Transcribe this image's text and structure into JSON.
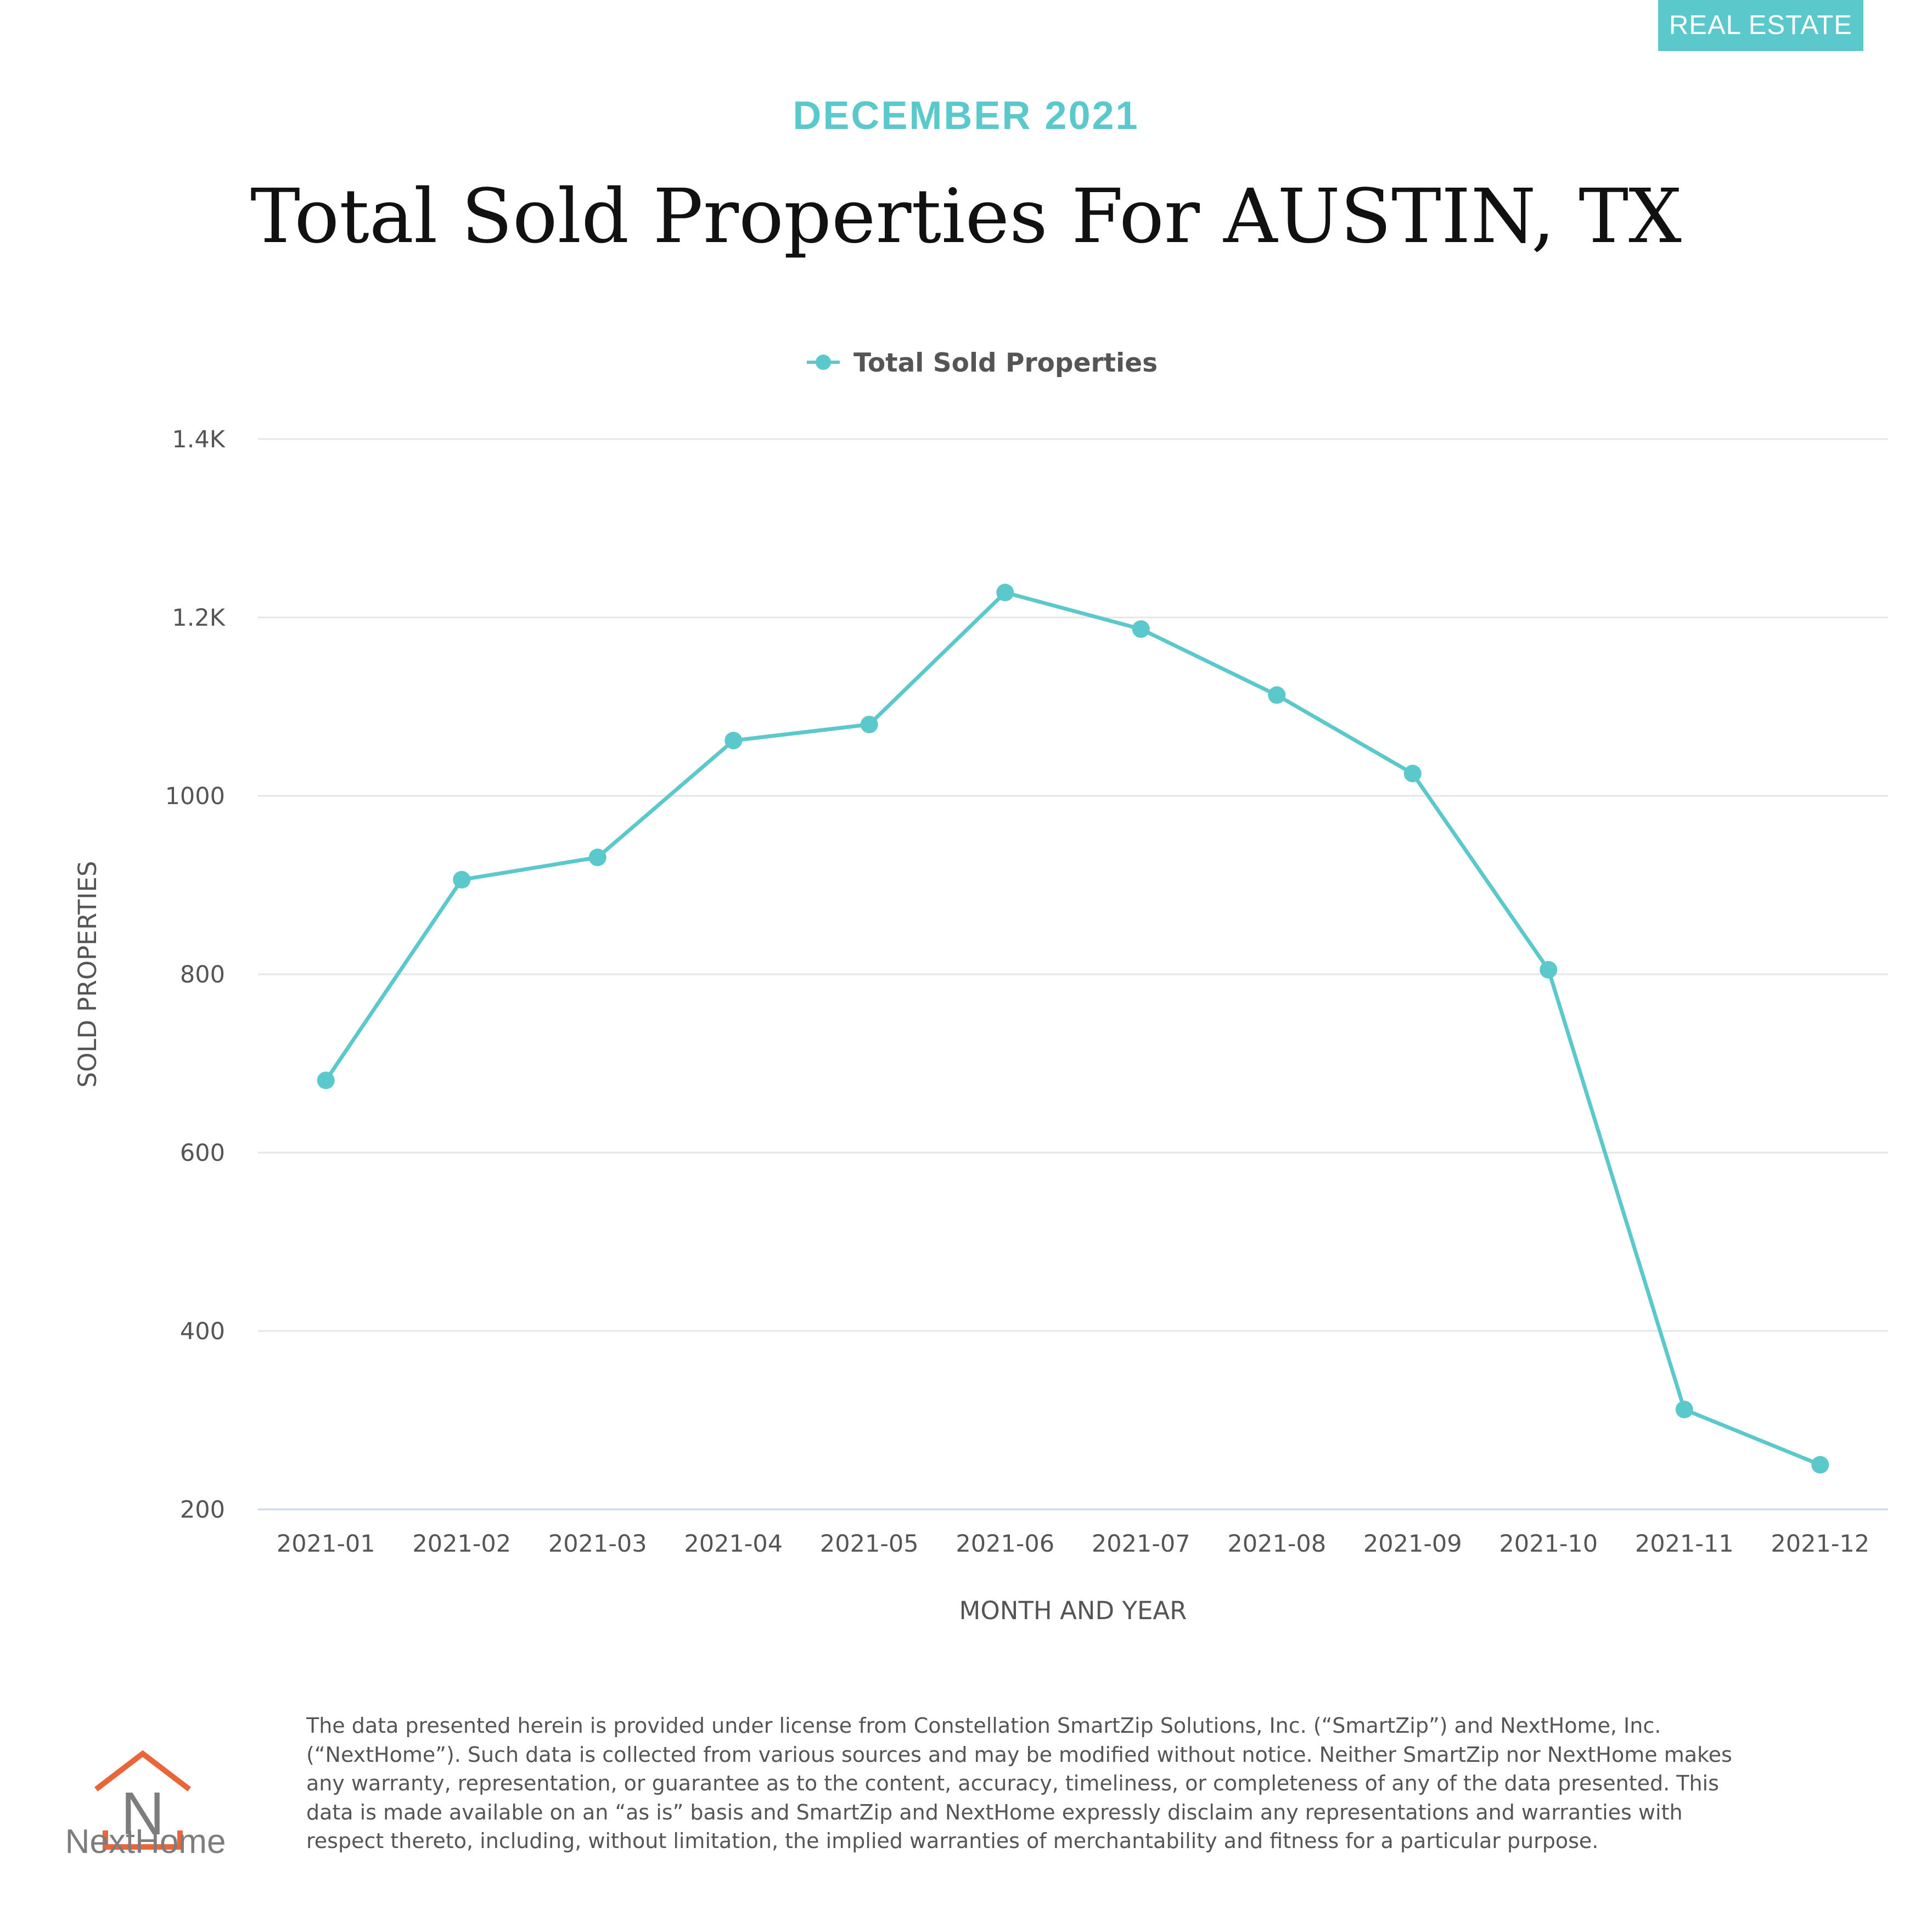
{
  "badge": "REAL ESTATE",
  "header": {
    "subtitle": "DECEMBER 2021",
    "title": "Total Sold Properties For AUSTIN, TX"
  },
  "colors": {
    "accent": "#5bc8cc",
    "grid": "#e6e6e6",
    "axis_line": "#ccd6eb",
    "text": "#555555",
    "logo_orange": "#e8663a",
    "logo_gray": "#7d7d7d"
  },
  "chart_data": {
    "type": "line",
    "categories": [
      "2021-01",
      "2021-02",
      "2021-03",
      "2021-04",
      "2021-05",
      "2021-06",
      "2021-07",
      "2021-08",
      "2021-09",
      "2021-10",
      "2021-11",
      "2021-12"
    ],
    "series": [
      {
        "name": "Total Sold Properties",
        "values": [
          681,
          906,
          931,
          1062,
          1080,
          1228,
          1187,
          1113,
          1025,
          805,
          312,
          250
        ]
      }
    ],
    "xlabel": "MONTH AND YEAR",
    "ylabel": "SOLD PROPERTIES",
    "ylim": [
      200,
      1400
    ],
    "yticks": [
      200,
      400,
      600,
      800,
      1000,
      1200,
      1400
    ],
    "ytick_labels": [
      "200",
      "400",
      "600",
      "800",
      "1000",
      "1.2K",
      "1.4K"
    ],
    "grid": true,
    "legend_position": "top-center",
    "marker": "circle"
  },
  "logo": {
    "letter": "N",
    "wordmark": "NextHome"
  },
  "disclaimer": "The data presented herein is provided under license from Constellation SmartZip Solutions, Inc. (“SmartZip”) and NextHome, Inc. (“NextHome”). Such data is collected from various sources and may be modified without notice. Neither SmartZip nor NextHome makes any warranty, representation, or guarantee as to the content, accuracy, timeliness, or completeness of any of the data presented. This data is made available on an “as is” basis and SmartZip and NextHome expressly disclaim any representations and warranties with respect thereto, including, without limitation, the implied warranties of merchantability and fitness for a particular purpose."
}
